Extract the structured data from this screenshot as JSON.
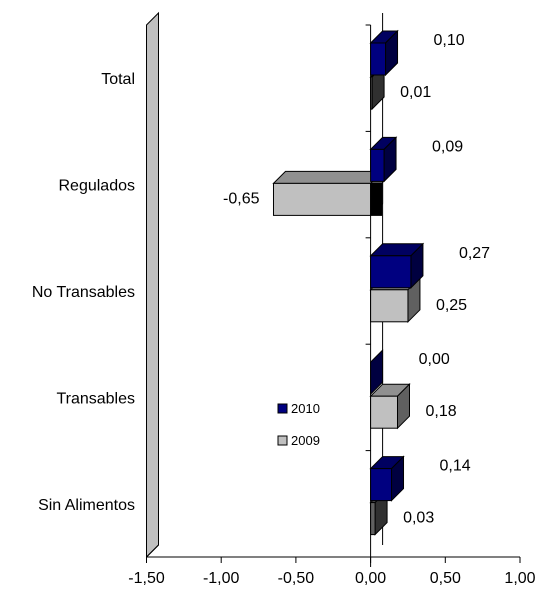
{
  "chart_data": {
    "type": "bar",
    "orientation": "horizontal",
    "style": "3d",
    "categories": [
      "Total",
      "Regulados",
      "No Transables",
      "Transables",
      "Sin Alimentos"
    ],
    "series": [
      {
        "name": "2010",
        "values": [
          0.1,
          0.09,
          0.27,
          0.0,
          0.14
        ],
        "color": "#000080"
      },
      {
        "name": "2009",
        "values": [
          0.01,
          -0.65,
          0.25,
          0.18,
          0.03
        ],
        "color": "#c0c0c0"
      }
    ],
    "value_labels": {
      "2010": [
        "0,10",
        "0,09",
        "0,27",
        "0,00",
        "0,14"
      ],
      "2009": [
        "0,01",
        "-0,65",
        "0,25",
        "0,18",
        "0,03"
      ]
    },
    "xlim": [
      -1.5,
      1.0
    ],
    "xticks": [
      -1.5,
      -1.0,
      -0.5,
      0.0,
      0.5,
      1.0
    ],
    "xtick_labels": [
      "-1,50",
      "-1,00",
      "-0,50",
      "0,00",
      "0,50",
      "1,00"
    ],
    "legend": {
      "position": "inside-center",
      "entries": [
        "2010",
        "2009"
      ]
    },
    "grid": false,
    "title": "",
    "xlabel": "",
    "ylabel": ""
  }
}
